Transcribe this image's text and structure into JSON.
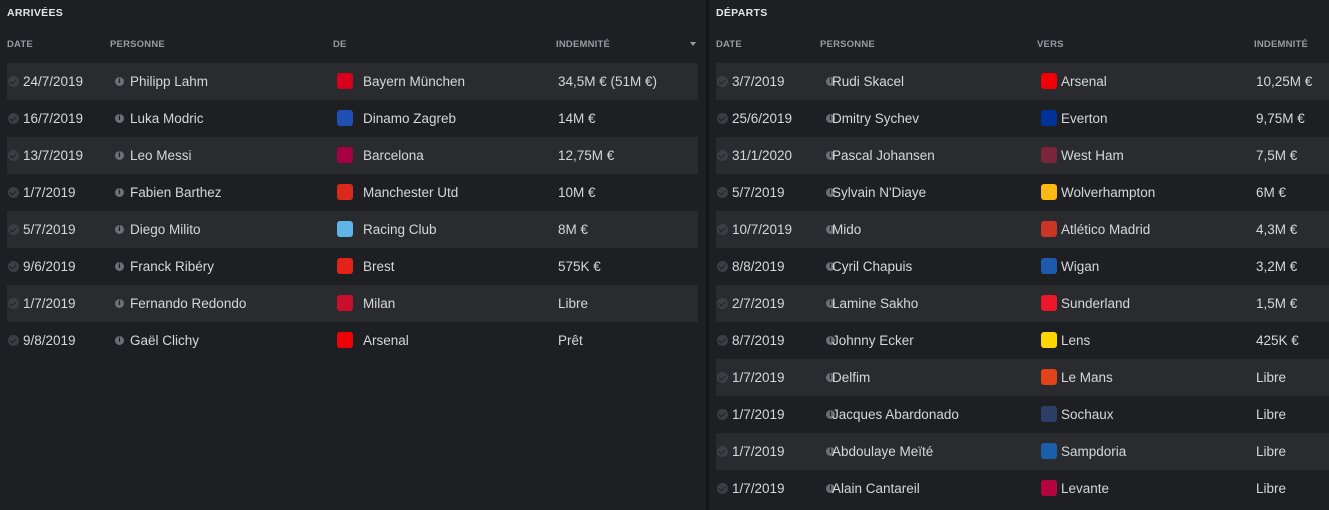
{
  "arrivals": {
    "title": "ARRIVÉES",
    "headers": {
      "date": "DATE",
      "person": "PERSONNE",
      "from": "DE",
      "fee": "INDEMNITÉ"
    },
    "rows": [
      {
        "date": "24/7/2019",
        "person": "Philipp Lahm",
        "club": "Bayern München",
        "fee": "34,5M € (51M €)",
        "crest": "bayern-crest-icon",
        "color": "#d6001c"
      },
      {
        "date": "16/7/2019",
        "person": "Luka Modric",
        "club": "Dinamo Zagreb",
        "fee": "14M €",
        "crest": "dinamo-zagreb-crest-icon",
        "color": "#1f4fb2"
      },
      {
        "date": "13/7/2019",
        "person": "Leo Messi",
        "club": "Barcelona",
        "fee": "12,75M €",
        "crest": "barcelona-crest-icon",
        "color": "#a50044"
      },
      {
        "date": "1/7/2019",
        "person": "Fabien Barthez",
        "club": "Manchester Utd",
        "fee": "10M €",
        "crest": "manchester-utd-crest-icon",
        "color": "#da291c"
      },
      {
        "date": "5/7/2019",
        "person": "Diego Milito",
        "club": "Racing Club",
        "fee": "8M €",
        "crest": "racing-club-crest-icon",
        "color": "#5fb5e8"
      },
      {
        "date": "9/6/2019",
        "person": "Franck Ribéry",
        "club": "Brest",
        "fee": "575K €",
        "crest": "brest-crest-icon",
        "color": "#e2231a"
      },
      {
        "date": "1/7/2019",
        "person": "Fernando Redondo",
        "club": "Milan",
        "fee": "Libre",
        "crest": "milan-crest-icon",
        "color": "#c8102e"
      },
      {
        "date": "9/8/2019",
        "person": "Gaël Clichy",
        "club": "Arsenal",
        "fee": "Prêt",
        "crest": "arsenal-crest-icon",
        "color": "#ef0107"
      }
    ]
  },
  "departures": {
    "title": "DÉPARTS",
    "headers": {
      "date": "DATE",
      "person": "PERSONNE",
      "to": "VERS",
      "fee": "INDEMNITÉ"
    },
    "rows": [
      {
        "date": "3/7/2019",
        "person": "Rudi Skacel",
        "club": "Arsenal",
        "fee": "10,25M €",
        "crest": "arsenal-crest-icon",
        "color": "#ef0107"
      },
      {
        "date": "25/6/2019",
        "person": "Dmitry Sychev",
        "club": "Everton",
        "fee": "9,75M €",
        "crest": "everton-crest-icon",
        "color": "#003399"
      },
      {
        "date": "31/1/2020",
        "person": "Pascal Johansen",
        "club": "West Ham",
        "fee": "7,5M €",
        "crest": "west-ham-crest-icon",
        "color": "#7a263a"
      },
      {
        "date": "5/7/2019",
        "person": "Sylvain N'Diaye",
        "club": "Wolverhampton",
        "fee": "6M €",
        "crest": "wolverhampton-crest-icon",
        "color": "#fdb913"
      },
      {
        "date": "10/7/2019",
        "person": "Mido",
        "club": "Atlético Madrid",
        "fee": "4,3M €",
        "crest": "atletico-madrid-crest-icon",
        "color": "#cb3524"
      },
      {
        "date": "8/8/2019",
        "person": "Cyril Chapuis",
        "club": "Wigan",
        "fee": "3,2M €",
        "crest": "wigan-crest-icon",
        "color": "#1d59af"
      },
      {
        "date": "2/7/2019",
        "person": "Lamine Sakho",
        "club": "Sunderland",
        "fee": "1,5M €",
        "crest": "sunderland-crest-icon",
        "color": "#eb172b"
      },
      {
        "date": "8/7/2019",
        "person": "Johnny Ecker",
        "club": "Lens",
        "fee": "425K €",
        "crest": "lens-crest-icon",
        "color": "#ffd700"
      },
      {
        "date": "1/7/2019",
        "person": "Delfim",
        "club": "Le Mans",
        "fee": "Libre",
        "crest": "le-mans-crest-icon",
        "color": "#e2431b"
      },
      {
        "date": "1/7/2019",
        "person": "Jacques Abardonado",
        "club": "Sochaux",
        "fee": "Libre",
        "crest": "sochaux-crest-icon",
        "color": "#2c3d66"
      },
      {
        "date": "1/7/2019",
        "person": "Abdoulaye Meïté",
        "club": "Sampdoria",
        "fee": "Libre",
        "crest": "sampdoria-crest-icon",
        "color": "#1b5faa"
      },
      {
        "date": "1/7/2019",
        "person": "Alain Cantareil",
        "club": "Levante",
        "fee": "Libre",
        "crest": "levante-crest-icon",
        "color": "#b4053f"
      }
    ]
  }
}
